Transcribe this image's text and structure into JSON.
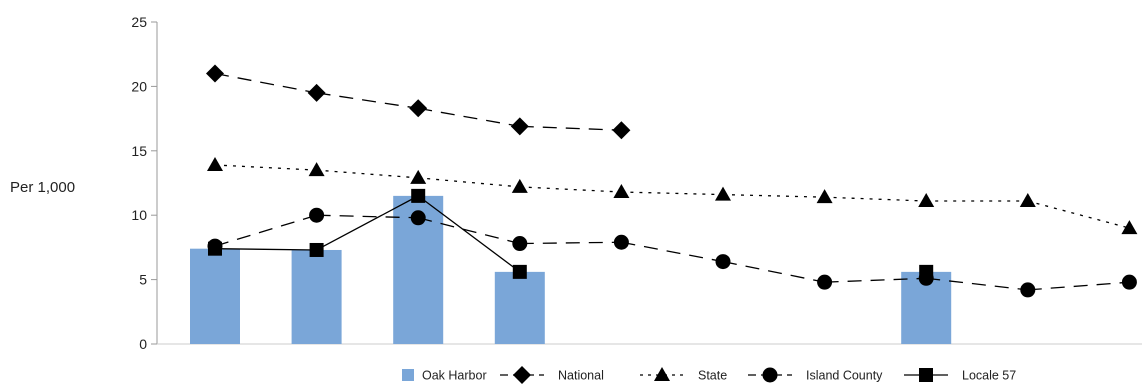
{
  "chart_data": {
    "type": "bar",
    "ylabel": "Per 1,000",
    "ylim": [
      0,
      25
    ],
    "yticks": [
      "0",
      "5",
      "10",
      "15",
      "20",
      "25"
    ],
    "x": [
      1,
      2,
      3,
      4,
      5,
      6,
      7,
      8,
      9,
      10
    ],
    "grid": false,
    "legend_position": "bottom",
    "colors": {
      "bar": "#7aa6d8",
      "line": "#000000",
      "axis": "#999999"
    },
    "series": [
      {
        "name": "Oak Harbor",
        "kind": "bar",
        "values": [
          7.4,
          7.3,
          11.5,
          5.6,
          null,
          null,
          null,
          5.6,
          null,
          null
        ]
      },
      {
        "name": "National",
        "kind": "line",
        "marker": "diamond",
        "dash": "long",
        "values": [
          21.0,
          19.5,
          18.3,
          16.9,
          16.6,
          null,
          null,
          null,
          null,
          null
        ]
      },
      {
        "name": "State",
        "kind": "line",
        "marker": "triangle",
        "dash": "dot",
        "values": [
          13.9,
          13.5,
          12.9,
          12.2,
          11.8,
          11.6,
          11.4,
          11.1,
          11.1,
          9.0
        ]
      },
      {
        "name": "Island County",
        "kind": "line",
        "marker": "circle",
        "dash": "long",
        "values": [
          7.6,
          10.0,
          9.8,
          7.8,
          7.9,
          6.4,
          4.8,
          5.1,
          4.2,
          4.8
        ]
      },
      {
        "name": "Locale 57",
        "kind": "line",
        "marker": "square",
        "dash": "solid",
        "values": [
          7.4,
          7.3,
          11.5,
          5.6,
          null,
          null,
          null,
          5.6,
          null,
          null
        ]
      }
    ]
  }
}
